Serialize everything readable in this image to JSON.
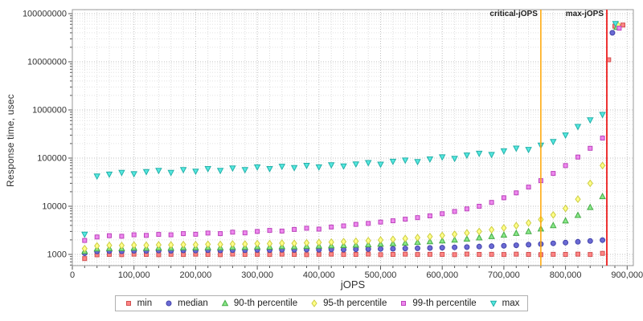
{
  "chart_data": {
    "type": "scatter",
    "xlabel": "jOPS",
    "ylabel": "Response time, usec",
    "x_domain": [
      0,
      910000
    ],
    "y_scale": "log",
    "y_domain": [
      584,
      120000000
    ],
    "grid": true,
    "legend_position": "bottom",
    "background": "#ffffff",
    "x_ticks": [
      {
        "v": 0,
        "label": "0"
      },
      {
        "v": 100000,
        "label": "100,000"
      },
      {
        "v": 200000,
        "label": "200,000"
      },
      {
        "v": 300000,
        "label": "300,000"
      },
      {
        "v": 400000,
        "label": "400,000"
      },
      {
        "v": 500000,
        "label": "500,000"
      },
      {
        "v": 600000,
        "label": "600,000"
      },
      {
        "v": 700000,
        "label": "700,000"
      },
      {
        "v": 800000,
        "label": "800,000"
      },
      {
        "v": 900000,
        "label": "900,000"
      }
    ],
    "y_ticks": [
      {
        "v": 1000,
        "label": "1000"
      },
      {
        "v": 10000,
        "label": "10000"
      },
      {
        "v": 100000,
        "label": "100000"
      },
      {
        "v": 1000000,
        "label": "1000000"
      },
      {
        "v": 10000000,
        "label": "10000000"
      },
      {
        "v": 100000000,
        "label": "100000000"
      }
    ],
    "vlines": [
      {
        "name": "critical-jOPS",
        "x": 760000,
        "color": "#ffa500",
        "width": 1.5
      },
      {
        "name": "max-jOPS",
        "x": 867000,
        "color": "#ee3333",
        "width": 2
      }
    ],
    "x": [
      20000,
      40000,
      60000,
      80000,
      100000,
      120000,
      140000,
      160000,
      180000,
      200000,
      220000,
      240000,
      260000,
      280000,
      300000,
      320000,
      340000,
      360000,
      380000,
      400000,
      420000,
      440000,
      460000,
      480000,
      500000,
      520000,
      540000,
      560000,
      580000,
      600000,
      620000,
      640000,
      660000,
      680000,
      700000,
      720000,
      740000,
      760000,
      780000,
      800000,
      820000,
      840000,
      860000
    ],
    "series": [
      {
        "name": "min",
        "label": "min",
        "marker": "square",
        "fill": "#ff8585",
        "stroke": "#d05050",
        "y": [
          820,
          980,
          1000,
          990,
          1010,
          1000,
          985,
          1005,
          995,
          1010,
          1000,
          990,
          1015,
          1000,
          1005,
          995,
          1010,
          1000,
          990,
          1005,
          1010,
          995,
          1000,
          1015,
          990,
          1000,
          1010,
          995,
          1005,
          1000,
          990,
          1015,
          1000,
          1005,
          995,
          1010,
          1000,
          990,
          1005,
          1000,
          1010,
          995,
          1050
        ],
        "extra": [
          [
            870000,
            11000000
          ],
          [
            880000,
            55000000
          ],
          [
            893000,
            58000000
          ]
        ]
      },
      {
        "name": "median",
        "label": "median",
        "marker": "circle",
        "fill": "#6a6ad4",
        "stroke": "#4444aa",
        "y": [
          1060,
          1150,
          1170,
          1160,
          1190,
          1180,
          1200,
          1190,
          1210,
          1200,
          1220,
          1210,
          1230,
          1220,
          1240,
          1230,
          1250,
          1240,
          1260,
          1250,
          1270,
          1260,
          1280,
          1290,
          1300,
          1310,
          1330,
          1340,
          1360,
          1380,
          1400,
          1420,
          1450,
          1480,
          1510,
          1550,
          1590,
          1640,
          1700,
          1760,
          1830,
          1900,
          1980
        ],
        "extra": [
          [
            876000,
            40000000
          ]
        ]
      },
      {
        "name": "p90",
        "label": "90-th percentile",
        "marker": "triangle-up",
        "fill": "#8ae88a",
        "stroke": "#44aa44",
        "y": [
          1160,
          1310,
          1340,
          1330,
          1360,
          1350,
          1370,
          1360,
          1390,
          1380,
          1400,
          1390,
          1420,
          1410,
          1440,
          1430,
          1460,
          1450,
          1480,
          1500,
          1520,
          1540,
          1570,
          1600,
          1640,
          1680,
          1730,
          1790,
          1850,
          1920,
          2000,
          2100,
          2220,
          2360,
          2530,
          2750,
          3000,
          3400,
          4000,
          5000,
          6500,
          9500,
          16000
        ],
        "extra": [
          [
            883000,
            52000000
          ]
        ]
      },
      {
        "name": "p95",
        "label": "95-th percentile",
        "marker": "diamond",
        "fill": "#ffff88",
        "stroke": "#cccc44",
        "y": [
          1320,
          1500,
          1540,
          1530,
          1560,
          1550,
          1580,
          1570,
          1600,
          1590,
          1620,
          1610,
          1650,
          1640,
          1680,
          1670,
          1710,
          1700,
          1740,
          1770,
          1800,
          1840,
          1880,
          1930,
          1990,
          2060,
          2140,
          2230,
          2340,
          2470,
          2620,
          2800,
          3000,
          3250,
          3550,
          3950,
          4500,
          5300,
          6600,
          9000,
          14000,
          30000,
          70000
        ],
        "extra": [
          [
            885000,
            58000000
          ]
        ]
      },
      {
        "name": "p99",
        "label": "99-th percentile",
        "marker": "square",
        "fill": "#ee88ee",
        "stroke": "#bb44bb",
        "y": [
          1950,
          2300,
          2450,
          2380,
          2550,
          2480,
          2600,
          2550,
          2700,
          2620,
          2780,
          2700,
          2900,
          2800,
          3000,
          3150,
          3050,
          3300,
          3500,
          3350,
          3700,
          3900,
          4200,
          4400,
          4700,
          5000,
          5400,
          5800,
          6300,
          7000,
          7800,
          8800,
          10000,
          12000,
          15000,
          19000,
          25000,
          34000,
          48000,
          70000,
          105000,
          160000,
          260000
        ],
        "extra": [
          [
            887000,
            50000000
          ]
        ]
      },
      {
        "name": "max",
        "label": "max",
        "marker": "triangle-down",
        "fill": "#55e8e0",
        "stroke": "#22b0a8",
        "y": [
          2600,
          42000,
          46000,
          50000,
          47000,
          52000,
          55000,
          50000,
          57000,
          53000,
          60000,
          55000,
          62000,
          57000,
          65000,
          60000,
          67000,
          63000,
          70000,
          65000,
          72000,
          68000,
          75000,
          80000,
          74000,
          85000,
          90000,
          84000,
          95000,
          105000,
          98000,
          115000,
          125000,
          118000,
          140000,
          160000,
          150000,
          185000,
          220000,
          300000,
          450000,
          620000,
          800000
        ],
        "extra": [
          [
            881000,
            62000000
          ]
        ]
      }
    ]
  }
}
